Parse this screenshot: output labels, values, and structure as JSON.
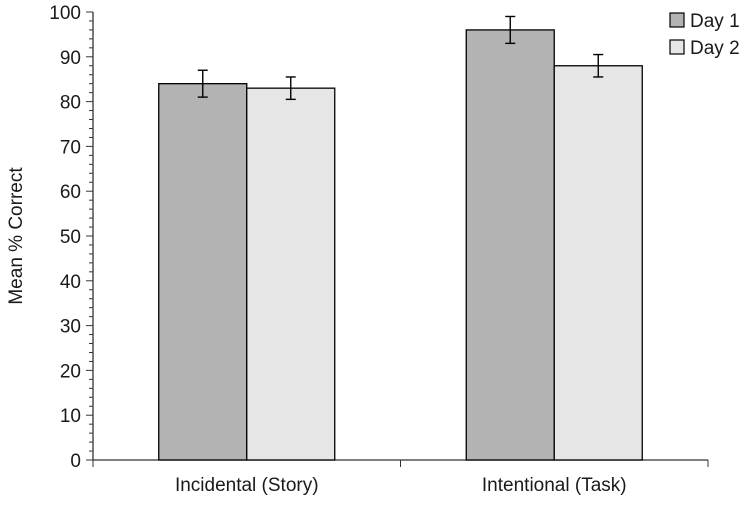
{
  "chart_data": {
    "type": "bar",
    "title": "",
    "xlabel": "",
    "ylabel": "Mean % Correct",
    "ylim": [
      0,
      100
    ],
    "yticks": [
      0,
      10,
      20,
      30,
      40,
      50,
      60,
      70,
      80,
      90,
      100
    ],
    "categories": [
      "Incidental (Story)",
      "Intentional (Task)"
    ],
    "series": [
      {
        "name": "Day 1",
        "color": "#b3b3b3",
        "values": [
          84,
          96
        ],
        "errors": [
          3,
          3
        ]
      },
      {
        "name": "Day 2",
        "color": "#e6e6e6",
        "values": [
          83,
          88
        ],
        "errors": [
          2.5,
          2.5
        ]
      }
    ],
    "grid": false,
    "legend_position": "top-right"
  }
}
